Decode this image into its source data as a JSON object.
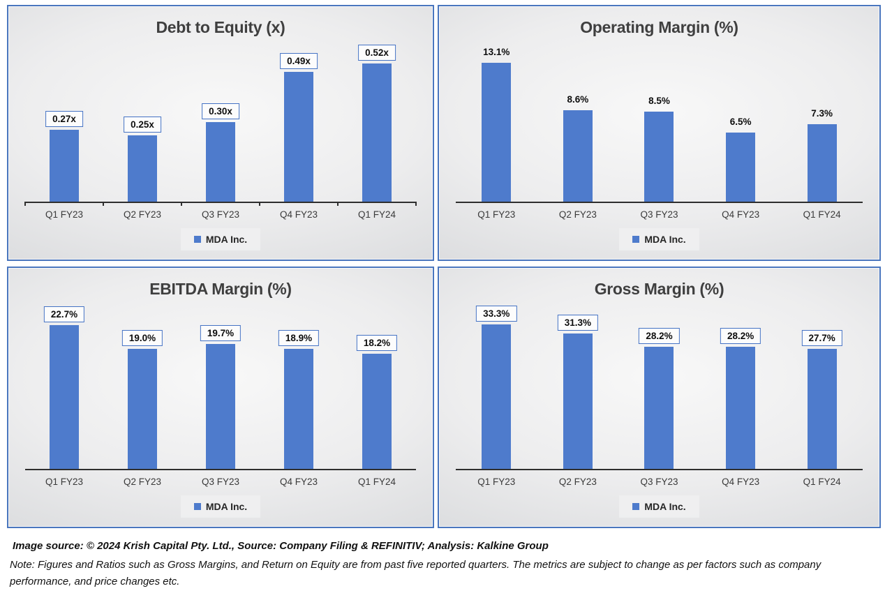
{
  "colors": {
    "bar": "#4E7BCC",
    "panel_border": "#4A76BE",
    "label_box_border": "#4472C4",
    "axis": "#2E2E2E",
    "title_text": "#3F3F3F",
    "footer_text": "#111111"
  },
  "chart_data": [
    {
      "type": "bar",
      "title": "Debt to Equity (x)",
      "legend": "MDA Inc.",
      "legend_position": "bottom",
      "grid": false,
      "categories": [
        "Q1 FY23",
        "Q2 FY23",
        "Q3 FY23",
        "Q4 FY23",
        "Q1 FY24"
      ],
      "values": [
        0.27,
        0.25,
        0.3,
        0.49,
        0.52
      ],
      "labels": [
        "0.27x",
        "0.25x",
        "0.30x",
        "0.49x",
        "0.52x"
      ],
      "ylim": [
        0,
        0.6
      ],
      "boxed_labels": true,
      "axis_ticks": true
    },
    {
      "type": "bar",
      "title": "Operating Margin (%)",
      "legend": "MDA Inc.",
      "legend_position": "bottom",
      "grid": false,
      "categories": [
        "Q1 FY23",
        "Q2 FY23",
        "Q3 FY23",
        "Q4 FY23",
        "Q1 FY24"
      ],
      "values": [
        13.1,
        8.6,
        8.5,
        6.5,
        7.3
      ],
      "labels": [
        "13.1%",
        "8.6%",
        "8.5%",
        "6.5%",
        "7.3%"
      ],
      "ylim": [
        0,
        15
      ],
      "boxed_labels": false,
      "axis_ticks": false
    },
    {
      "type": "bar",
      "title": "EBITDA Margin (%)",
      "legend": "MDA Inc.",
      "legend_position": "bottom",
      "grid": false,
      "categories": [
        "Q1 FY23",
        "Q2 FY23",
        "Q3 FY23",
        "Q4 FY23",
        "Q1 FY24"
      ],
      "values": [
        22.7,
        19.0,
        19.7,
        18.9,
        18.2
      ],
      "labels": [
        "22.7%",
        "19.0%",
        "19.7%",
        "18.9%",
        "18.2%"
      ],
      "ylim": [
        0,
        26
      ],
      "boxed_labels": true,
      "axis_ticks": false
    },
    {
      "type": "bar",
      "title": "Gross Margin (%)",
      "legend": "MDA Inc.",
      "legend_position": "bottom",
      "grid": false,
      "categories": [
        "Q1 FY23",
        "Q2 FY23",
        "Q3 FY23",
        "Q4 FY23",
        "Q1 FY24"
      ],
      "values": [
        33.3,
        31.3,
        28.2,
        28.2,
        27.7
      ],
      "labels": [
        "33.3%",
        "31.3%",
        "28.2%",
        "28.2%",
        "27.7%"
      ],
      "ylim": [
        0,
        38
      ],
      "boxed_labels": true,
      "axis_ticks": false
    }
  ],
  "footer": {
    "source_line": "Image source: © 2024 Krish Capital Pty. Ltd., Source: Company Filing & REFINITIV; Analysis: Kalkine Group",
    "note_line": "Note: Figures and Ratios such as  Gross Margins, and Return on Equity are from past  five reported  quarters. The metrics are subject to change as per factors such as company performance, and price changes etc."
  }
}
